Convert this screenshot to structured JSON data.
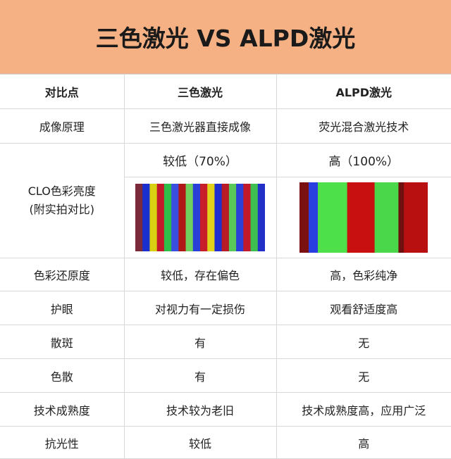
{
  "title": "三色激光 VS ALPD激光",
  "table": {
    "headers": [
      "对比点",
      "三色激光",
      "ALPD激光"
    ],
    "rows": [
      {
        "label": "成像原理",
        "a": "三色激光器直接成像",
        "b": "荧光混合激光技术"
      },
      {
        "label_line1": "CLO色彩亮度",
        "label_line2": "(附实拍对比)",
        "a": "较低（70%）",
        "b": "高（100%）"
      },
      {
        "label": "色彩还原度",
        "a": "较低，存在偏色",
        "b": "高，色彩纯净"
      },
      {
        "label": "护眼",
        "a": "对视力有一定损伤",
        "b": "观看舒适度高"
      },
      {
        "label": "散斑",
        "a": "有",
        "b": "无"
      },
      {
        "label": "色散",
        "a": "有",
        "b": "无"
      },
      {
        "label": "技术成熟度",
        "a": "技术较为老旧",
        "b": "技术成熟度高，应用广泛"
      },
      {
        "label": "抗光性",
        "a": "较低",
        "b": "高"
      }
    ]
  },
  "photos": {
    "tri_laser_colors": [
      "#7a2a3a",
      "#1a2fd0",
      "#d8d010",
      "#c21a2a",
      "#2dbf4a",
      "#3a4fe0",
      "#b01818",
      "#6fd060",
      "#2a3fd8",
      "#c81e2a",
      "#e2d21a",
      "#1f2fd0",
      "#b81a28",
      "#58c858",
      "#2a40d8",
      "#c21a2a",
      "#3fbf50",
      "#2230c8"
    ],
    "alpd_colors": [
      "#7a1010",
      "#2a3fe0",
      "#4ee04a",
      "#c81010",
      "#4ad84a",
      "#6f1010",
      "#b81010"
    ]
  }
}
